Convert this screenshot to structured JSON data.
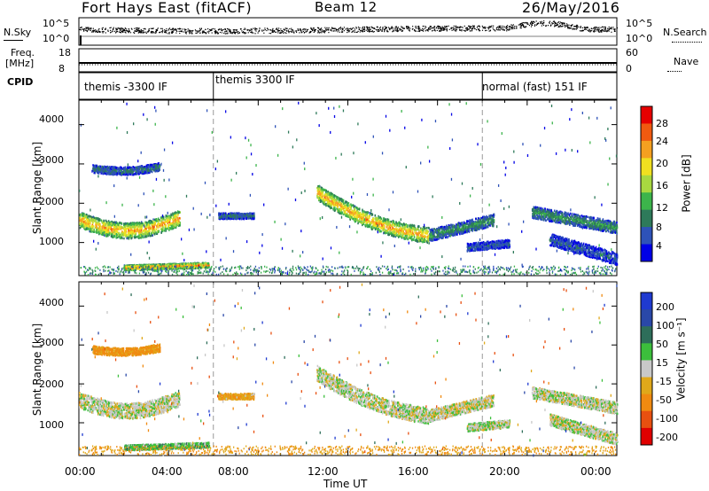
{
  "header": {
    "station": "Fort Hays East (fitACF)",
    "beam": "Beam 12",
    "date": "26/May/2016"
  },
  "sky_panel": {
    "left_label": "N.Sky",
    "right_label": "N.Search",
    "left_ticks": [
      "10^5",
      "10^0"
    ],
    "right_ticks": [
      "10^5",
      "10^0"
    ]
  },
  "freq_panel": {
    "left_label_1": "Freq.",
    "left_label_2": "[MHz]",
    "left_ticks": [
      "18",
      "8"
    ],
    "right_ticks": [
      "60",
      "0"
    ],
    "right_label": "Nave"
  },
  "cpid": {
    "label": "CPID",
    "segments": [
      "themis -3300 IF",
      "themis 3300 IF",
      "normal (fast) 151 IF"
    ]
  },
  "x_axis": {
    "label": "Time UT",
    "ticks": [
      "00:00",
      "04:00",
      "08:00",
      "12:00",
      "16:00",
      "20:00",
      "00:00"
    ]
  },
  "power_colorbar": {
    "label": "Power [dB]",
    "ticks": [
      "28",
      "24",
      "20",
      "16",
      "12",
      "8",
      "4"
    ]
  },
  "velocity_colorbar": {
    "label": "Velocity [m s⁻¹]",
    "ticks": [
      "200",
      "100",
      "50",
      "15",
      "-15",
      "-50",
      "-100",
      "-200"
    ]
  },
  "chart_data": [
    {
      "type": "heatmap",
      "panel": "power",
      "ylabel": "Slant Range [km]",
      "xlabel": "Time UT",
      "xlim_hours": [
        0,
        24
      ],
      "ylim": [
        180,
        4600
      ],
      "yticks": [
        1000,
        2000,
        3000,
        4000
      ],
      "colorbar": {
        "label": "Power [dB]",
        "ticks": [
          28,
          24,
          20,
          16,
          12,
          8,
          4
        ],
        "range": [
          0,
          32
        ]
      },
      "scatter_bands": [
        {
          "t0": 0.0,
          "t1": 4.5,
          "center_start": 1600,
          "center_end": 1650,
          "dip": 300,
          "width": 400,
          "power": 22
        },
        {
          "t0": 0.6,
          "t1": 3.6,
          "center_start": 2900,
          "center_end": 2950,
          "dip": 80,
          "width": 200,
          "power": 8
        },
        {
          "t0": 2.0,
          "t1": 5.8,
          "center_start": 380,
          "center_end": 450,
          "dip": 0,
          "width": 130,
          "power": 24
        },
        {
          "t0": 6.2,
          "t1": 7.8,
          "center_start": 1700,
          "center_end": 1700,
          "dip": 0,
          "width": 150,
          "power": 8
        },
        {
          "t0": 10.6,
          "t1": 15.6,
          "center_start": 2300,
          "center_end": 1200,
          "dip": 200,
          "width": 400,
          "power": 22
        },
        {
          "t0": 15.6,
          "t1": 18.5,
          "center_start": 1200,
          "center_end": 1600,
          "dip": 0,
          "width": 300,
          "power": 10
        },
        {
          "t0": 17.3,
          "t1": 19.2,
          "center_start": 900,
          "center_end": 1000,
          "dip": 0,
          "width": 200,
          "power": 6
        },
        {
          "t0": 20.2,
          "t1": 24.0,
          "center_start": 1800,
          "center_end": 1400,
          "dip": 0,
          "width": 300,
          "power": 10
        },
        {
          "t0": 21.0,
          "t1": 24.0,
          "center_start": 1100,
          "center_end": 600,
          "dip": 0,
          "width": 300,
          "power": 6
        }
      ]
    },
    {
      "type": "heatmap",
      "panel": "velocity",
      "ylabel": "Slant Range [km]",
      "xlabel": "Time UT",
      "xlim_hours": [
        0,
        24
      ],
      "ylim": [
        180,
        4600
      ],
      "yticks": [
        1000,
        2000,
        3000,
        4000
      ],
      "colorbar": {
        "label": "Velocity [m s⁻¹]",
        "ticks": [
          200,
          100,
          50,
          15,
          -15,
          -50,
          -100,
          -200
        ],
        "range": [
          -250,
          250
        ]
      },
      "scatter_bands": [
        {
          "t0": 0.0,
          "t1": 4.5,
          "center_start": 1600,
          "center_end": 1650,
          "dip": 300,
          "width": 400,
          "velocity": 0
        },
        {
          "t0": 0.6,
          "t1": 3.6,
          "center_start": 2900,
          "center_end": 2950,
          "dip": 80,
          "width": 200,
          "velocity": -60
        },
        {
          "t0": 2.0,
          "t1": 5.8,
          "center_start": 380,
          "center_end": 450,
          "dip": 0,
          "width": 130,
          "velocity": 35
        },
        {
          "t0": 6.2,
          "t1": 7.8,
          "center_start": 1700,
          "center_end": 1700,
          "dip": 0,
          "width": 150,
          "velocity": -40
        },
        {
          "t0": 10.6,
          "t1": 15.6,
          "center_start": 2300,
          "center_end": 1200,
          "dip": 200,
          "width": 400,
          "velocity": 0
        },
        {
          "t0": 15.6,
          "t1": 18.5,
          "center_start": 1200,
          "center_end": 1600,
          "dip": 0,
          "width": 300,
          "velocity": -5
        },
        {
          "t0": 17.3,
          "t1": 19.2,
          "center_start": 900,
          "center_end": 1000,
          "dip": 0,
          "width": 200,
          "velocity": 5
        },
        {
          "t0": 20.2,
          "t1": 24.0,
          "center_start": 1800,
          "center_end": 1400,
          "dip": 0,
          "width": 300,
          "velocity": 0
        },
        {
          "t0": 21.0,
          "t1": 24.0,
          "center_start": 1100,
          "center_end": 600,
          "dip": 0,
          "width": 300,
          "velocity": 0
        }
      ]
    }
  ],
  "cpid_boundaries_hours": [
    6.0,
    18.0
  ],
  "palettes": {
    "power": [
      "#0000e6",
      "#2e52b8",
      "#2e7a5a",
      "#3cb44b",
      "#a8d840",
      "#f0e020",
      "#f5a020",
      "#f05a10",
      "#e60000"
    ],
    "velocity_pos": [
      "#2e6e5a",
      "#2a48a8",
      "#1f3ad0"
    ],
    "velocity_neg": [
      "#e0a81a",
      "#f08a10",
      "#e85010",
      "#e00000"
    ],
    "velocity_zero": "#c8c8c8",
    "velocity_slow_pos": "#3cbf3c"
  }
}
